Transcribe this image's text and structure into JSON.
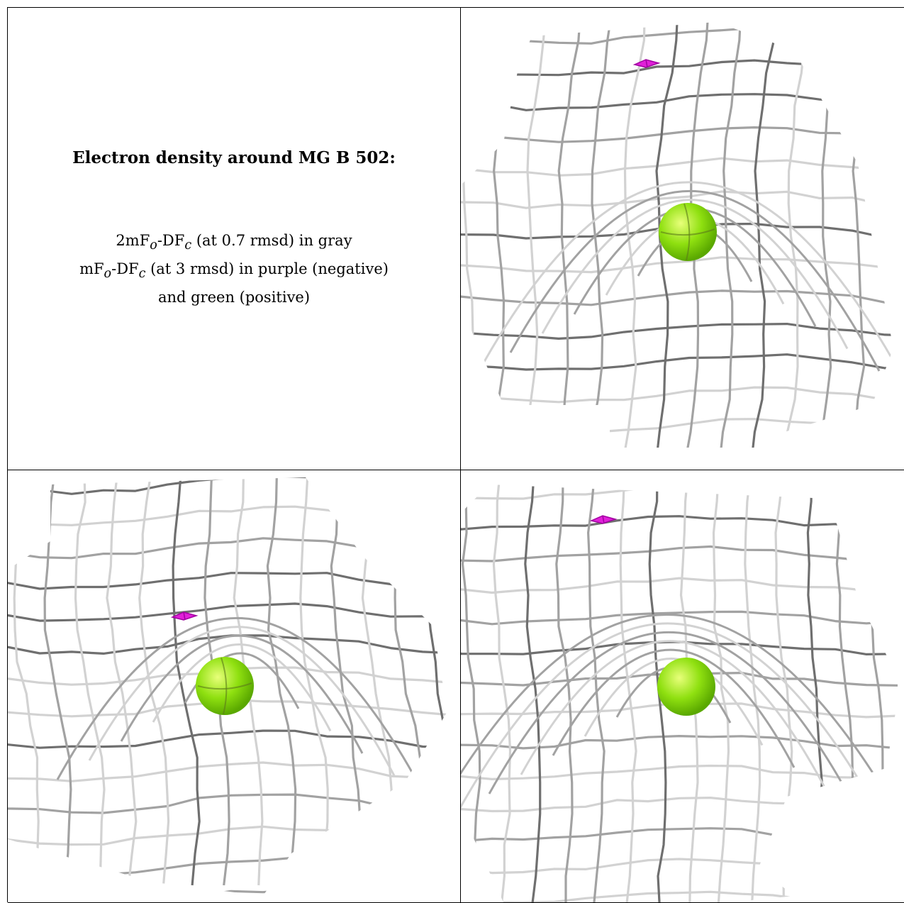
{
  "caption": {
    "title": "Electron density around MG B 502:",
    "line1": "2mF",
    "line1_sub1": "o",
    "line1_mid": "-DF",
    "line1_sub2": "c",
    "line1_tail": " (at 0.7 rmsd) in gray",
    "line2": "mF",
    "line2_sub1": "o",
    "line2_mid": "-DF",
    "line2_sub2": "c",
    "line2_tail": " (at 3 rmsd) in purple (negative)",
    "line3": "and green (positive)"
  },
  "colors": {
    "mesh_dark": "#6f6f6f",
    "mesh_mid": "#a2a2a2",
    "mesh_light": "#d2d2d2",
    "atom_green": "#8fe010",
    "atom_highlight": "#e8ff7a",
    "negative_purple": "#e020d8"
  },
  "panels": [
    {
      "name": "view-top-right",
      "icons": [
        "mesh",
        "mg-atom-sphere",
        "negative-density-marker"
      ]
    },
    {
      "name": "view-bottom-left",
      "icons": [
        "mesh",
        "mg-atom-sphere",
        "negative-density-marker"
      ]
    },
    {
      "name": "view-bottom-right",
      "icons": [
        "mesh",
        "mg-atom-sphere",
        "negative-density-marker"
      ]
    }
  ]
}
